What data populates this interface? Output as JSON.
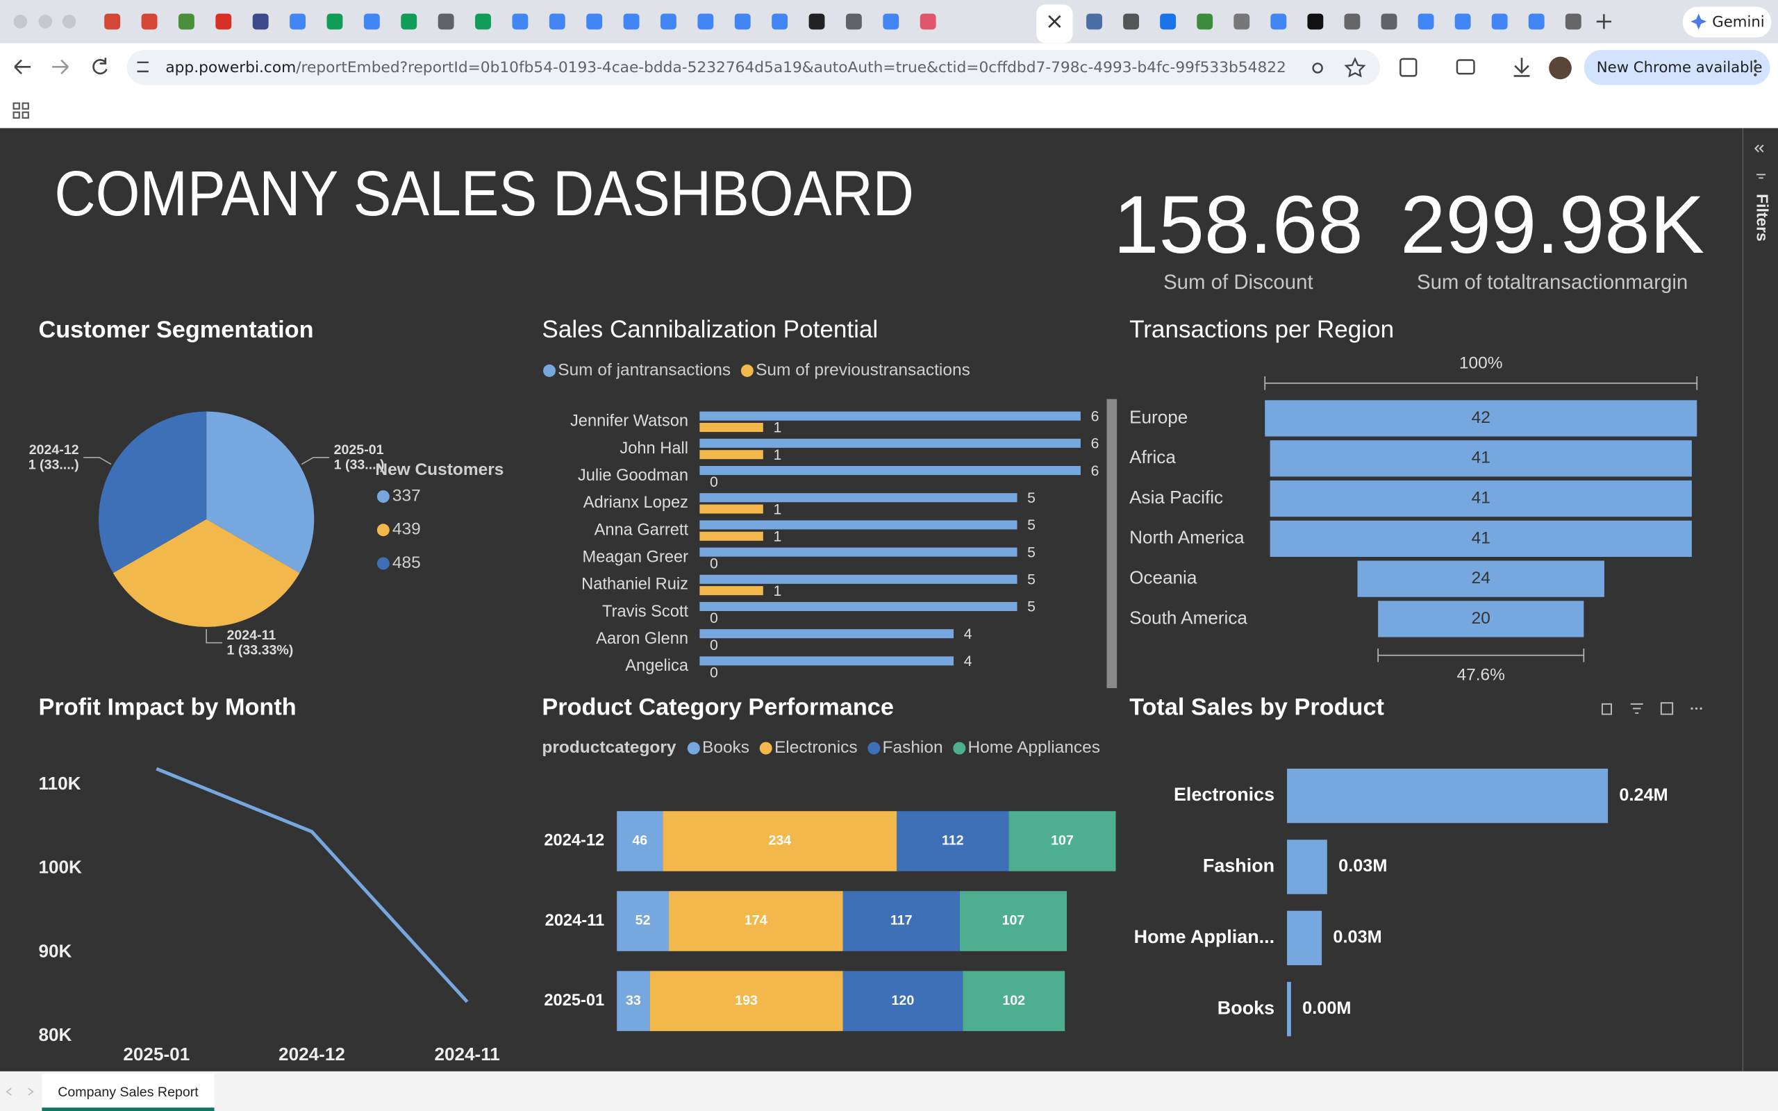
{
  "browser": {
    "url_host": "app.powerbi.com",
    "url_path": "/reportEmbed?reportId=0b10fb54-0193-4cae-bdda-5232764d5a19&autoAuth=true&ctid=0cffdbd7-798c-4993-b4fc-99f533b54822",
    "update": "New Chrome available",
    "gemini": "Gemini"
  },
  "report": {
    "title": "COMPANY SALES DASHBOARD",
    "cards": [
      {
        "value": "158.68",
        "label": "Sum of Discount"
      },
      {
        "value": "299.98K",
        "label": "Sum of totaltransactionmargin"
      }
    ],
    "filters": "Filters",
    "page_tab": "Company Sales Report"
  },
  "chart_data": [
    {
      "type": "pie",
      "title": "Customer Segmentation",
      "categories": [
        "2025-01",
        "2024-11",
        "2024-12"
      ],
      "values": [
        1,
        1,
        1
      ],
      "value_labels": [
        "1 (33....)",
        "1 (33.33%)",
        "1 (33....)"
      ],
      "colors": [
        "#76a7de",
        "#f2b84b",
        "#3e70b8"
      ],
      "legend_title": "New Customers",
      "legend": [
        "337",
        "439",
        "485"
      ]
    },
    {
      "type": "bar",
      "orientation": "horizontal",
      "title": "Sales Cannibalization Potential",
      "categories": [
        "Jennifer Watson",
        "John Hall",
        "Julie Goodman",
        "Adrianx Lopez",
        "Anna Garrett",
        "Meagan Greer",
        "Nathaniel Ruiz",
        "Travis Scott",
        "Aaron Glenn",
        "Angelica"
      ],
      "series": [
        {
          "name": "Sum of jantransactions",
          "color": "#76a7de",
          "values": [
            6,
            6,
            6,
            5,
            5,
            5,
            5,
            5,
            4,
            4
          ]
        },
        {
          "name": "Sum of previoustransactions",
          "color": "#f2b84b",
          "values": [
            1,
            1,
            0,
            1,
            1,
            0,
            1,
            0,
            0,
            0
          ]
        }
      ]
    },
    {
      "type": "funnel",
      "title": "Transactions per Region",
      "categories": [
        "Europe",
        "Africa",
        "Asia Pacific",
        "North America",
        "Oceania",
        "South America"
      ],
      "values": [
        42,
        41,
        41,
        41,
        24,
        20
      ],
      "color": "#76a7de",
      "annotations": [
        "100%",
        "47.6%"
      ]
    },
    {
      "type": "line",
      "title": "Profit Impact by Month",
      "categories": [
        "2025-01",
        "2024-12",
        "2024-11"
      ],
      "values": [
        111900,
        104400,
        84100
      ],
      "color": "#76a7de",
      "ylim": [
        80000,
        113000
      ],
      "yticks": [
        {
          "value": 80000,
          "label": "80K"
        },
        {
          "value": 90000,
          "label": "90K"
        },
        {
          "value": 100000,
          "label": "100K"
        },
        {
          "value": 110000,
          "label": "110K"
        }
      ]
    },
    {
      "type": "stacked_bar",
      "orientation": "horizontal",
      "title": "Product Category Performance",
      "legend_title": "productcategory",
      "categories": [
        "2024-12",
        "2024-11",
        "2025-01"
      ],
      "series": [
        {
          "name": "Books",
          "color": "#76a7de",
          "values": [
            46,
            52,
            33
          ]
        },
        {
          "name": "Electronics",
          "color": "#f2b84b",
          "values": [
            234,
            174,
            193
          ]
        },
        {
          "name": "Fashion",
          "color": "#3e70b8",
          "values": [
            112,
            117,
            120
          ]
        },
        {
          "name": "Home Appliances",
          "color": "#4daf8f",
          "values": [
            107,
            107,
            102
          ]
        }
      ]
    },
    {
      "type": "bar",
      "orientation": "horizontal",
      "title": "Total Sales by Product",
      "categories": [
        "Electronics",
        "Fashion",
        "Home Applian...",
        "Books"
      ],
      "values": [
        240000,
        30000,
        26000,
        3000
      ],
      "value_labels": [
        "0.24M",
        "0.03M",
        "0.03M",
        "0.00M"
      ],
      "color": "#76a7de"
    }
  ]
}
